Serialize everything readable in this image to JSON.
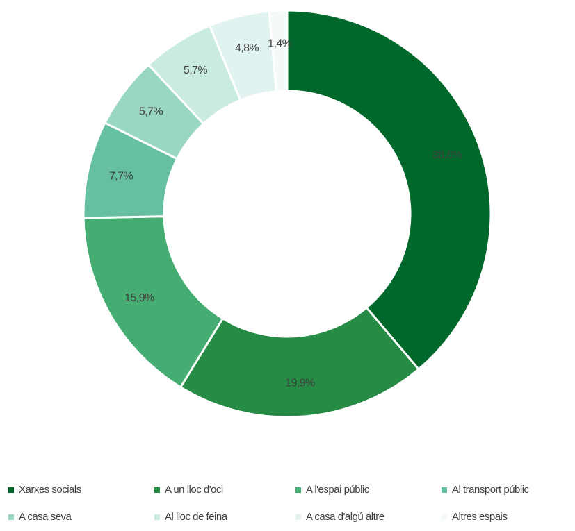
{
  "chart_data": {
    "type": "donut",
    "categories": [
      "Xarxes socials",
      "A un lloc d'oci",
      "A l'espai públic",
      "Al transport públic",
      "A casa seva",
      "Al lloc de feina",
      "A casa d'algú altre",
      "Altres espais"
    ],
    "values": [
      38.8,
      19.9,
      15.9,
      7.7,
      5.7,
      5.7,
      4.8,
      1.4
    ],
    "value_labels": [
      "38,8%",
      "19,9%",
      "15,9%",
      "7,7%",
      "5,7%",
      "5,7%",
      "4,8%",
      "1,4%"
    ],
    "colors": [
      "#00682a",
      "#258b45",
      "#45ad72",
      "#66c09f",
      "#99d7c4",
      "#c9ebe2",
      "#e1f3f0",
      "#f3faf9"
    ],
    "legend": "bottom"
  }
}
